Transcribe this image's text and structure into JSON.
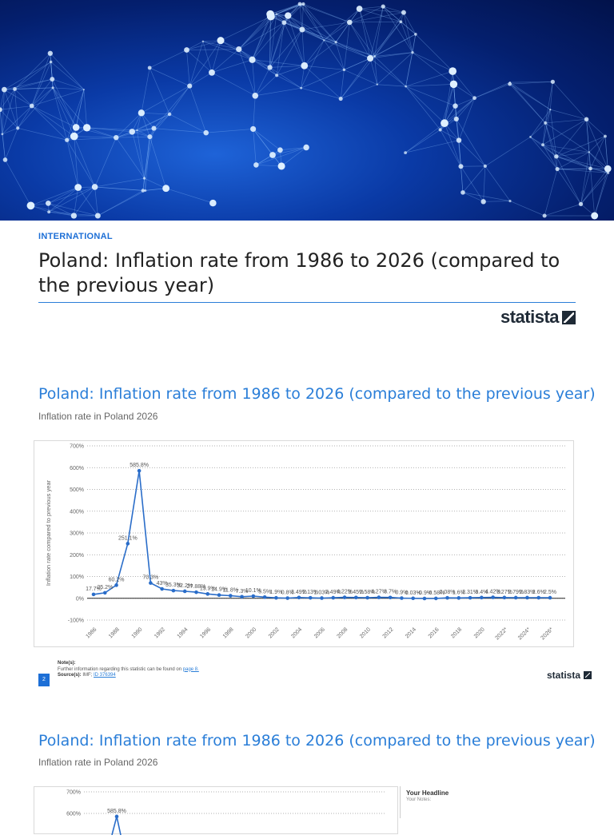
{
  "header": {
    "category": "INTERNATIONAL",
    "title": "Poland: Inflation rate from 1986 to 2026 (compared to the previous year)",
    "logo_text": "statista"
  },
  "section1": {
    "title": "Poland: Inflation rate from 1986 to 2026 (compared to the previous year)",
    "subtitle": "Inflation rate in Poland 2026",
    "notes_label": "Note(s):",
    "notes_text": "Further information regarding this statistic can be found on",
    "notes_link": "page 8.",
    "source_label": "Source(s):",
    "source_text": "IMF;",
    "source_link": "ID 376394",
    "page_number": "2",
    "logo_text": "statista"
  },
  "section2": {
    "title": "Poland: Inflation rate from 1986 to 2026 (compared to the previous year)",
    "subtitle": "Inflation rate in Poland 2026",
    "side_headline": "Your Headline",
    "side_notes": "Your Notes:"
  },
  "chart_data": [
    {
      "type": "line",
      "title": "",
      "xlabel": "",
      "ylabel": "Inflation rate compared to previous year",
      "ylim": [
        -100,
        700
      ],
      "yticks": [
        "-100%",
        "0%",
        "100%",
        "200%",
        "300%",
        "400%",
        "500%",
        "600%",
        "700%"
      ],
      "xtick_labels": [
        "1986",
        "1988",
        "1990",
        "1992",
        "1994",
        "1996",
        "1998",
        "2000",
        "2002",
        "2004",
        "2006",
        "2008",
        "2010",
        "2012",
        "2014",
        "2016",
        "2018",
        "2020",
        "2022*",
        "2024*",
        "2026*"
      ],
      "grid": true,
      "color": "#2a6dc9",
      "x": [
        "1986",
        "1987",
        "1988",
        "1989",
        "1990",
        "1991",
        "1992",
        "1993",
        "1994",
        "1995",
        "1996",
        "1997",
        "1998",
        "1999",
        "2000",
        "2001",
        "2002",
        "2003",
        "2004",
        "2005",
        "2006",
        "2007",
        "2008",
        "2009",
        "2010",
        "2011",
        "2012",
        "2013",
        "2014",
        "2015",
        "2016",
        "2017",
        "2018",
        "2019",
        "2020",
        "2021",
        "2022*",
        "2023*",
        "2024*",
        "2025*",
        "2026*"
      ],
      "values": [
        17.7,
        25.2,
        60.2,
        251.1,
        585.8,
        70.3,
        43,
        35.3,
        32.2,
        27.9,
        19.9,
        14.9,
        11.8,
        7.3,
        10.1,
        5.5,
        1.9,
        0.8,
        3.5,
        2.1,
        1,
        2.5,
        4.2,
        3.5,
        2.6,
        4.3,
        3.7,
        0.9,
        0,
        -0.9,
        -0.6,
        2,
        1.6,
        2.3,
        3.4,
        4.4,
        3.3,
        2.8,
        2.8,
        2.6,
        2.5
      ],
      "labels": [
        "17.7%",
        "25.2%",
        "60.2%",
        "251.1%",
        "585.8%",
        "70.3%",
        "43%",
        "35.3%",
        "32.2%",
        "27.88%",
        "19.9%",
        "14.9%",
        "11.8%",
        "7.3%",
        "10.1%",
        "5.5%",
        "1.9%",
        "0.8%",
        "3.49%",
        "2.13%",
        "1.03%",
        "2.49%",
        "4.22%",
        "3.45%",
        "2.58%",
        "4.27%",
        "3.7%",
        "0.9%",
        "0.03%",
        "-0.9%",
        "-0.58%",
        "2.08%",
        "1.6%",
        "2.31%",
        "3.4%",
        "4.42%",
        "3.27%",
        "2.79%",
        "2.83%",
        "2.6%",
        "2.5%"
      ]
    },
    {
      "type": "line",
      "title": "",
      "ylim": [
        -100,
        700
      ],
      "yticks": [
        "600%",
        "700%"
      ],
      "color": "#2a6dc9",
      "peak_x": "1990",
      "peak_value": 585.8,
      "peak_label": "585.8%"
    }
  ]
}
